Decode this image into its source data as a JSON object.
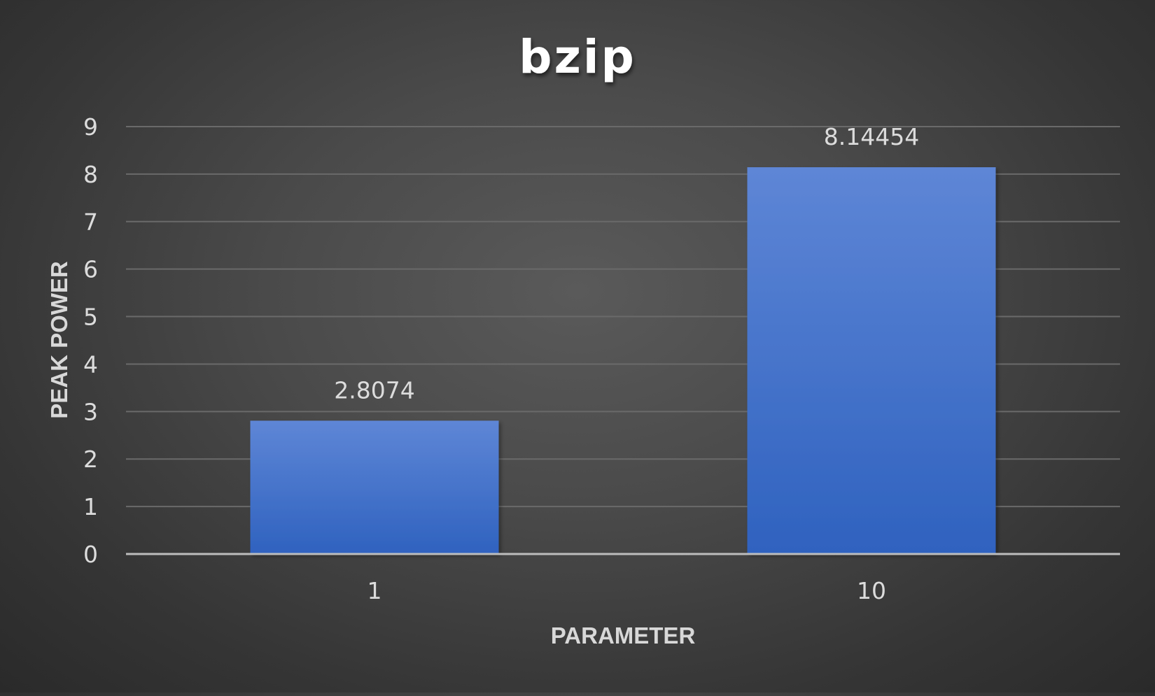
{
  "chart_data": {
    "type": "bar",
    "title": "bzip",
    "xlabel": "PARAMETER",
    "ylabel": "PEAK POWER",
    "categories": [
      "1",
      "10"
    ],
    "series": [
      {
        "values": [
          2.8074,
          8.14454
        ],
        "data_labels": [
          "2.8074",
          "8.14454"
        ]
      }
    ],
    "ylim": [
      0,
      9
    ],
    "yticks": [
      0,
      1,
      2,
      3,
      4,
      5,
      6,
      7,
      8,
      9
    ],
    "grid": true,
    "legend": "none",
    "bar_color": "#3f6fd0"
  }
}
